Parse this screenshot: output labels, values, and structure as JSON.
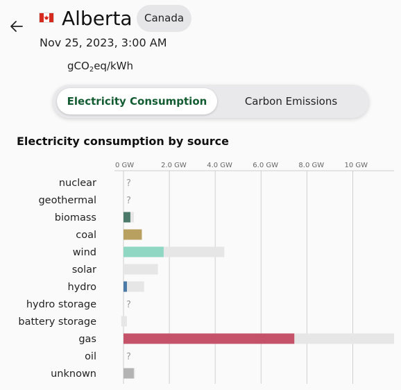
{
  "header": {
    "back_icon": "arrow-left-icon",
    "flag_icon": "canada-flag-icon",
    "zone_name": "Alberta",
    "country": "Canada",
    "datetime": "Nov 25, 2023, 3:00 AM",
    "unit_main": "gCO",
    "unit_sub": "2",
    "unit_rest": "eq/kWh"
  },
  "toggle": {
    "active_label": "Electricity Consumption",
    "inactive_label": "Carbon Emissions"
  },
  "colors": {
    "accent": "#135b31",
    "capacity": "#e6e6e6",
    "grid": "#cfcfcf"
  },
  "chart_data": {
    "type": "bar",
    "title": "Electricity consumption by source",
    "x_ticks": [
      "0 GW",
      "2.0 GW",
      "4.0 GW",
      "6.0 GW",
      "8.0 GW",
      "10 GW"
    ],
    "x_tick_values": [
      0,
      2,
      4,
      6,
      8,
      10
    ],
    "xlim": [
      0,
      11.8
    ],
    "categories": [
      "nuclear",
      "geothermal",
      "biomass",
      "coal",
      "wind",
      "solar",
      "hydro",
      "hydro storage",
      "battery storage",
      "gas",
      "oil",
      "unknown"
    ],
    "production": [
      null,
      null,
      0.3,
      0.8,
      1.75,
      0,
      0.15,
      null,
      -0.1,
      7.45,
      null,
      0.45
    ],
    "capacity": [
      null,
      null,
      0.45,
      0.8,
      4.4,
      1.5,
      0.9,
      null,
      0.15,
      11.8,
      null,
      0.5
    ],
    "colors": [
      "#9d71f7",
      "#ff0000",
      "#4b7a6a",
      "#b8a061",
      "#8fd6c3",
      "#f0ba00",
      "#4a7aa5",
      "#2774c4",
      "#b9b9b9",
      "#c45269",
      "#7a7a7a",
      "#b3b3b3"
    ],
    "unknown_marker": "?"
  }
}
